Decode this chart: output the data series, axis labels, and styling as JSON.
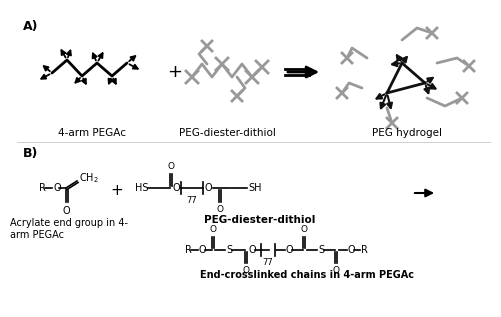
{
  "background_color": "#ffffff",
  "panel_A_label": "A)",
  "panel_B_label": "B)",
  "label_4arm": "4-arm PEGAc",
  "label_diester": "PEG-diester-dithiol",
  "label_hydrogel": "PEG hydrogel",
  "label_acrylate": "Acrylate end group in 4-\narm PEGAc",
  "label_diester2": "PEG-diester-dithiol",
  "label_crosslinked": "End-crosslinked chains in 4-arm PEGAc",
  "black": "#000000",
  "gray": "#aaaaaa"
}
